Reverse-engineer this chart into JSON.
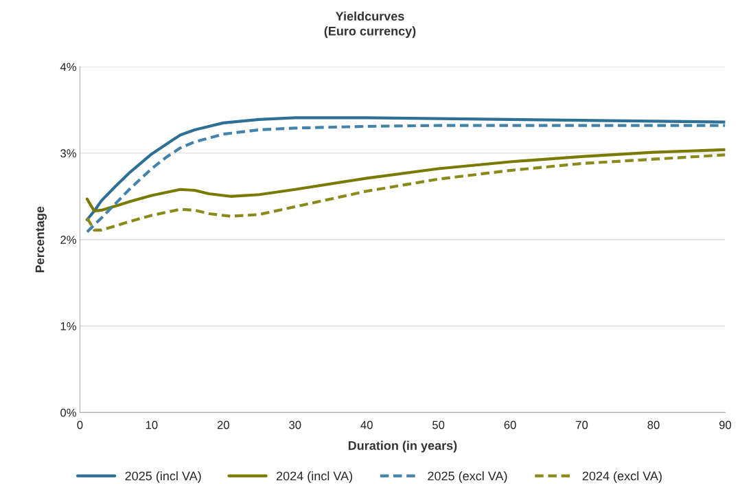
{
  "chart_data": {
    "type": "line",
    "title": "Yieldcurves",
    "subtitle": "(Euro currency)",
    "xlabel": "Duration (in years)",
    "ylabel": "Percentage",
    "xlim": [
      0,
      90
    ],
    "xticks": [
      0,
      10,
      20,
      30,
      40,
      50,
      60,
      70,
      80,
      90
    ],
    "ylim": [
      0,
      4
    ],
    "yticks": [
      {
        "value": 0,
        "label": "0%"
      },
      {
        "value": 1,
        "label": "1%"
      },
      {
        "value": 2,
        "label": "2%"
      },
      {
        "value": 3,
        "label": "3%"
      },
      {
        "value": 4,
        "label": "4%"
      }
    ],
    "grid": "y",
    "legend": "bottom",
    "series": [
      {
        "name": "2025 (incl VA)",
        "color": "#2e6f96",
        "line_style": "solid",
        "x": [
          1,
          2,
          3,
          5,
          7,
          10,
          12,
          14,
          16,
          20,
          25,
          30,
          35,
          40,
          50,
          60,
          70,
          80,
          90
        ],
        "values": [
          2.23,
          2.33,
          2.45,
          2.62,
          2.78,
          2.99,
          3.1,
          3.21,
          3.27,
          3.35,
          3.39,
          3.41,
          3.41,
          3.41,
          3.4,
          3.39,
          3.38,
          3.37,
          3.36
        ]
      },
      {
        "name": "2024 (incl VA)",
        "color": "#7a7a00",
        "line_style": "solid",
        "x": [
          1,
          2,
          3,
          5,
          7,
          10,
          14,
          16,
          18,
          21,
          25,
          30,
          40,
          50,
          60,
          70,
          80,
          90
        ],
        "values": [
          2.47,
          2.33,
          2.34,
          2.39,
          2.44,
          2.51,
          2.58,
          2.57,
          2.53,
          2.5,
          2.52,
          2.58,
          2.71,
          2.82,
          2.9,
          2.96,
          3.01,
          3.04
        ]
      },
      {
        "name": "2025 (excl VA)",
        "color": "#4383aa",
        "line_style": "dashed",
        "x": [
          1,
          3,
          5,
          7,
          10,
          12,
          14,
          16,
          20,
          25,
          30,
          40,
          50,
          60,
          90
        ],
        "values": [
          2.09,
          2.25,
          2.42,
          2.59,
          2.82,
          2.95,
          3.06,
          3.13,
          3.22,
          3.27,
          3.29,
          3.31,
          3.32,
          3.32,
          3.32
        ]
      },
      {
        "name": "2024 (excl VA)",
        "color": "#8a8a1a",
        "line_style": "dashed",
        "x": [
          1,
          2,
          3,
          5,
          7,
          10,
          14,
          16,
          18,
          21,
          25,
          30,
          40,
          50,
          60,
          70,
          80,
          90
        ],
        "values": [
          2.25,
          2.11,
          2.11,
          2.16,
          2.21,
          2.28,
          2.35,
          2.34,
          2.3,
          2.27,
          2.29,
          2.38,
          2.56,
          2.7,
          2.8,
          2.88,
          2.93,
          2.98
        ]
      }
    ]
  }
}
